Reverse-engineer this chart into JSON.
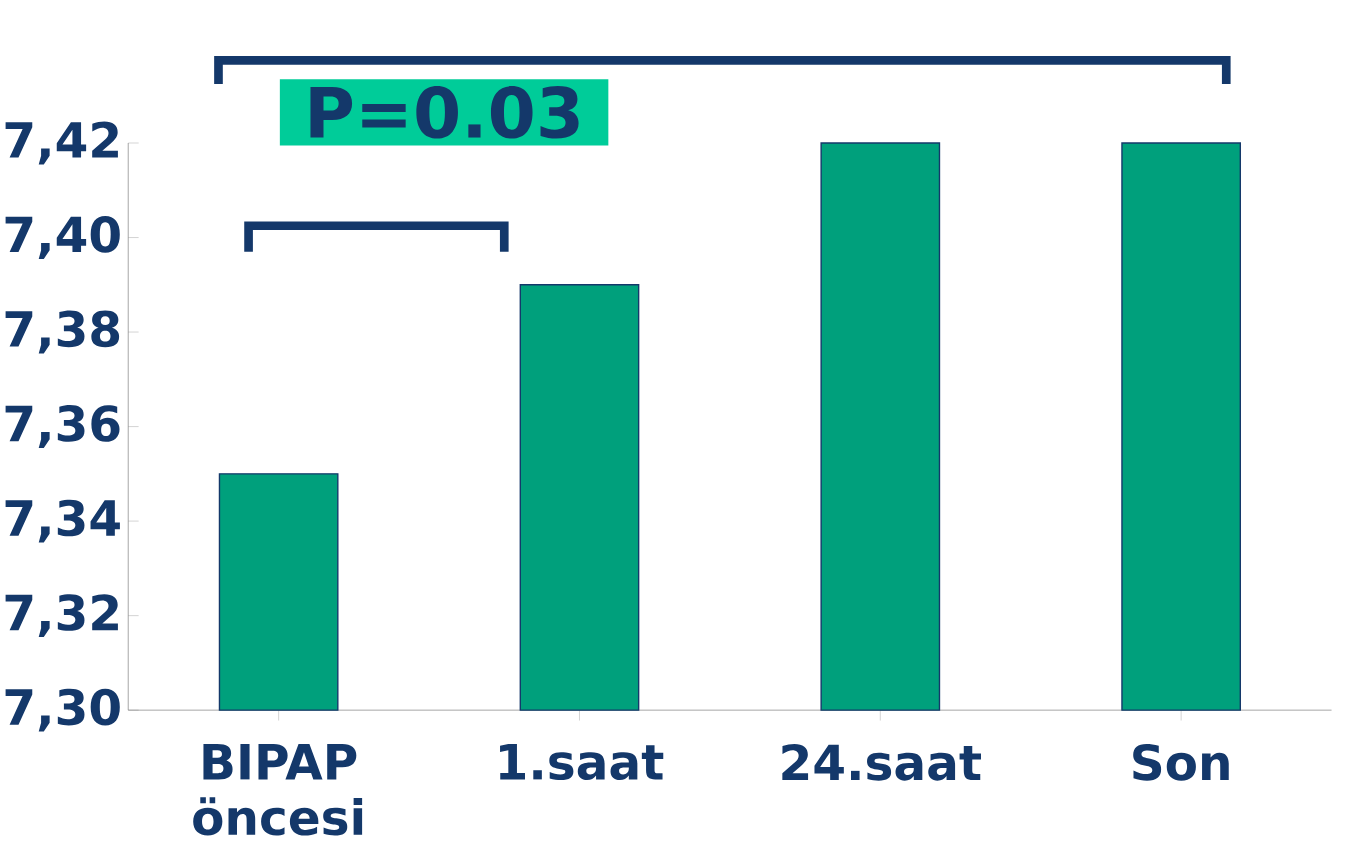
{
  "chart_data": {
    "type": "bar",
    "categories": [
      "BIPAP öncesi",
      "1.saat",
      "24.saat",
      "Son"
    ],
    "values": [
      7.35,
      7.39,
      7.42,
      7.42
    ],
    "color": "#00a07c",
    "ylim": [
      7.3,
      7.42
    ],
    "yticks": [
      {
        "value": 7.3,
        "label": "7,30"
      },
      {
        "value": 7.32,
        "label": "7,32"
      },
      {
        "value": 7.34,
        "label": "7,34"
      },
      {
        "value": 7.36,
        "label": "7,36"
      },
      {
        "value": 7.38,
        "label": "7,38"
      },
      {
        "value": 7.4,
        "label": "7,40"
      },
      {
        "value": 7.42,
        "label": "7,42"
      }
    ],
    "annotations": [
      "P=0.03"
    ]
  }
}
